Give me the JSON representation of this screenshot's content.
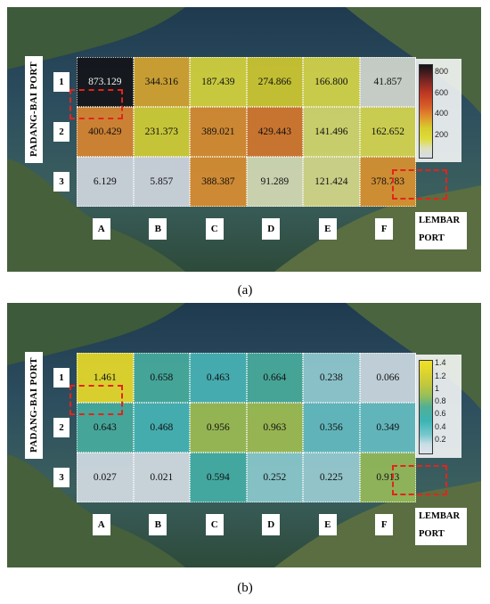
{
  "chart_data": [
    {
      "type": "heatmap",
      "panel_label": "(a)",
      "rows": [
        "1",
        "2",
        "3"
      ],
      "columns": [
        "A",
        "B",
        "C",
        "D",
        "E",
        "F"
      ],
      "values": [
        [
          "873.129",
          "344.316",
          "187.439",
          "274.866",
          "166.800",
          "41.857"
        ],
        [
          "400.429",
          "231.373",
          "389.021",
          "429.443",
          "141.496",
          "162.652"
        ],
        [
          "6.129",
          "5.857",
          "388.387",
          "91.289",
          "121.424",
          "378.783"
        ]
      ],
      "colorbar_ticks": [
        "800",
        "600",
        "400",
        "200"
      ],
      "colorbar_range": [
        0,
        873.129
      ],
      "colormap": "hot-yellow",
      "left_port": "PADANG-BAI  PORT",
      "right_port": [
        "LEMBAR",
        "PORT"
      ]
    },
    {
      "type": "heatmap",
      "panel_label": "(b)",
      "rows": [
        "1",
        "2",
        "3"
      ],
      "columns": [
        "A",
        "B",
        "C",
        "D",
        "E",
        "F"
      ],
      "values": [
        [
          "1.461",
          "0.658",
          "0.463",
          "0.664",
          "0.238",
          "0.066"
        ],
        [
          "0.643",
          "0.468",
          "0.956",
          "0.963",
          "0.356",
          "0.349"
        ],
        [
          "0.027",
          "0.021",
          "0.594",
          "0.252",
          "0.225",
          "0.913"
        ]
      ],
      "colorbar_ticks": [
        "1.4",
        "1.2",
        "1",
        "0.8",
        "0.6",
        "0.4",
        "0.2"
      ],
      "colorbar_range": [
        0,
        1.461
      ],
      "colormap": "parula",
      "left_port": "PADANG-BAI  PORT",
      "right_port": [
        "LEMBAR",
        "PORT"
      ]
    }
  ],
  "captions": {
    "a": "(a)",
    "b": "(b)"
  }
}
